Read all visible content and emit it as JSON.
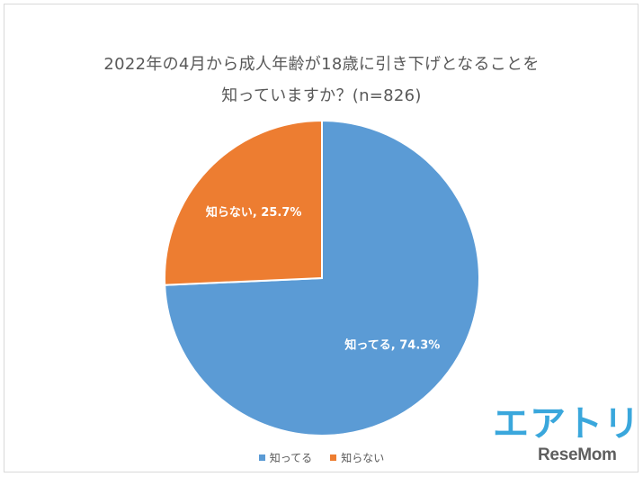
{
  "chart_data": {
    "type": "pie",
    "title_line1": "2022年の4月から成人年齢が18歳に引き下げとなることを",
    "title_line2": "知っていますか？(n=826)",
    "slices": [
      {
        "label": "知ってる",
        "value": 74.3,
        "data_label": "知ってる, 74.3%",
        "color": "#5b9bd5"
      },
      {
        "label": "知らない",
        "value": 25.7,
        "data_label": "知らない, 25.7%",
        "color": "#ed7d31"
      }
    ],
    "start_angle": "12 o'clock",
    "direction": "clockwise",
    "legend_position": "bottom"
  },
  "legend": [
    {
      "label": "知ってる",
      "color": "#5b9bd5"
    },
    {
      "label": "知らない",
      "color": "#ed7d31"
    }
  ],
  "branding": {
    "logo_text": "エアトリ",
    "watermark_text": "ReseMom"
  }
}
